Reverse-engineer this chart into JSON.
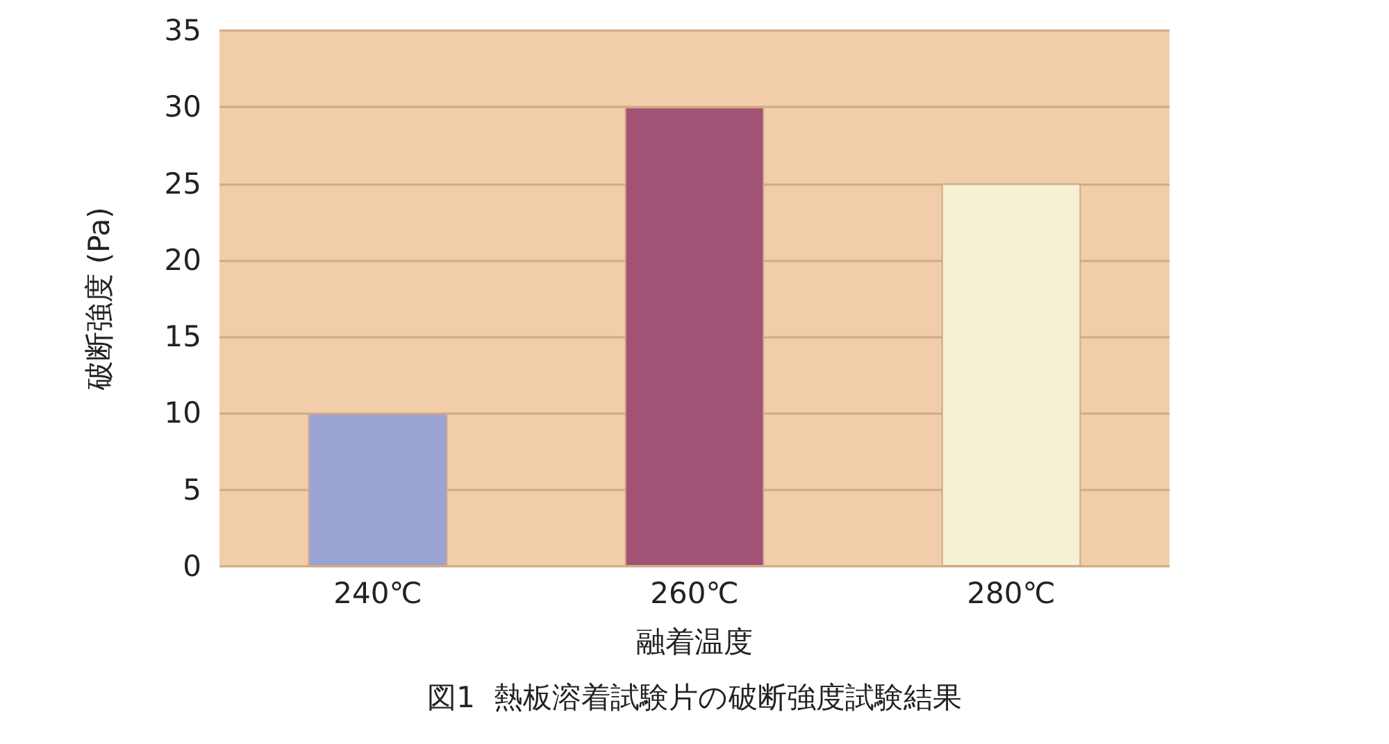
{
  "chart_data": {
    "type": "bar",
    "title": "図1  熱板溶着試験片の破断強度試験結果",
    "xlabel": "融着温度",
    "ylabel": "破断強度 (Pa)",
    "categories": [
      "240℃",
      "260℃",
      "280℃"
    ],
    "values": [
      10,
      30,
      25
    ],
    "colors": [
      "#9aa3d1",
      "#a25275",
      "#f4f2d3"
    ],
    "ylim": [
      0,
      35
    ],
    "yticks": [
      0,
      5,
      10,
      15,
      20,
      25,
      30,
      35
    ],
    "grid": "y"
  }
}
